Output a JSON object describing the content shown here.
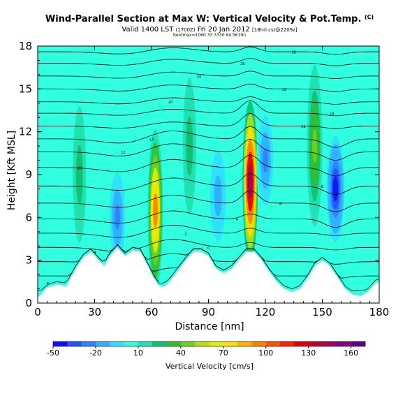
{
  "chart_data": {
    "type": "heatmap",
    "title": "Wind-Parallel Section at Max W: Vertical Velocity & Pot.Temp.",
    "title_suffix": "(C)",
    "subtitle_prefix": "Valid 1400 LST",
    "subtitle_small": "(1700Z)",
    "subtitle_main": "Fri 20 Jan 2012",
    "subtitle_tail": "[18hrl cst@2209z]",
    "subtitle_small2": "bootmax=1060 33 3330 64.5619n",
    "xlabel": "Distance [nm]",
    "ylabel": "Height [Kft MSL]",
    "xlim": [
      0,
      180
    ],
    "ylim": [
      0,
      18
    ],
    "xticks": [
      "0",
      "30",
      "60",
      "90",
      "120",
      "150",
      "180"
    ],
    "yticks": [
      "0",
      "3",
      "6",
      "9",
      "12",
      "15",
      "18"
    ],
    "colorbar": {
      "label": "Vertical Velocity [cm/s]",
      "ticks": [
        "-50",
        "-20",
        "10",
        "40",
        "70",
        "100",
        "130",
        "160"
      ],
      "range": [
        -50,
        170
      ],
      "colors": [
        "#1010ff",
        "#2050ff",
        "#3080ff",
        "#30b0ff",
        "#30e0ff",
        "#30ffe0",
        "#20e0b0",
        "#10c070",
        "#30c030",
        "#70d020",
        "#b0e010",
        "#e0f000",
        "#ffe000",
        "#ffb000",
        "#ff8000",
        "#ff5000",
        "#ff2000",
        "#e00000",
        "#c00030",
        "#a00060",
        "#800080",
        "#600080"
      ]
    },
    "terrain": [
      [
        0,
        0.4
      ],
      [
        5,
        1.1
      ],
      [
        10,
        1.3
      ],
      [
        15,
        1.2
      ],
      [
        20,
        2.4
      ],
      [
        24,
        3.2
      ],
      [
        28,
        3.6
      ],
      [
        32,
        3.0
      ],
      [
        35,
        2.6
      ],
      [
        38,
        3.3
      ],
      [
        42,
        3.9
      ],
      [
        46,
        3.3
      ],
      [
        50,
        3.7
      ],
      [
        54,
        3.6
      ],
      [
        58,
        2.6
      ],
      [
        61,
        1.8
      ],
      [
        64,
        1.2
      ],
      [
        67,
        1.2
      ],
      [
        70,
        1.6
      ],
      [
        74,
        2.3
      ],
      [
        78,
        3.0
      ],
      [
        82,
        3.6
      ],
      [
        86,
        3.6
      ],
      [
        90,
        3.3
      ],
      [
        94,
        2.4
      ],
      [
        98,
        2.1
      ],
      [
        102,
        2.4
      ],
      [
        106,
        3.0
      ],
      [
        110,
        3.6
      ],
      [
        114,
        3.6
      ],
      [
        118,
        3.0
      ],
      [
        122,
        2.2
      ],
      [
        126,
        1.5
      ],
      [
        130,
        1.0
      ],
      [
        134,
        0.8
      ],
      [
        138,
        1.0
      ],
      [
        142,
        1.7
      ],
      [
        146,
        2.6
      ],
      [
        150,
        3.0
      ],
      [
        154,
        2.6
      ],
      [
        158,
        1.8
      ],
      [
        162,
        1.0
      ],
      [
        166,
        0.6
      ],
      [
        170,
        0.5
      ],
      [
        174,
        0.8
      ],
      [
        178,
        1.4
      ],
      [
        180,
        1.5
      ]
    ],
    "features": [
      {
        "kind": "updraft",
        "x": 62,
        "y": 6.5,
        "peak": 90
      },
      {
        "kind": "updraft",
        "x": 112,
        "y": 8.5,
        "peak": 145
      },
      {
        "kind": "updraft",
        "x": 146,
        "y": 11.0,
        "peak": 45
      },
      {
        "kind": "updraft",
        "x": 22,
        "y": 9.0,
        "peak": 25
      },
      {
        "kind": "updraft",
        "x": 80,
        "y": 11.0,
        "peak": 25
      },
      {
        "kind": "downdraft",
        "x": 157,
        "y": 8.0,
        "peak": -45
      },
      {
        "kind": "downdraft",
        "x": 120,
        "y": 10.0,
        "peak": -25
      },
      {
        "kind": "downdraft",
        "x": 42,
        "y": 6.0,
        "peak": -25
      },
      {
        "kind": "downdraft",
        "x": 95,
        "y": 7.5,
        "peak": -15
      }
    ],
    "isentropes": [
      {
        "label": "-6",
        "y": 0.9
      },
      {
        "label": "-4",
        "y": 1.9
      },
      {
        "label": "-2",
        "y": 2.9
      },
      {
        "label": "0",
        "y": 3.9
      },
      {
        "label": "2",
        "y": 4.9
      },
      {
        "label": "4",
        "y": 5.9
      },
      {
        "label": "6",
        "y": 7.0
      },
      {
        "label": "8",
        "y": 8.2
      },
      {
        "label": "10",
        "y": 9.5
      },
      {
        "label": "12",
        "y": 10.6
      },
      {
        "label": "14",
        "y": 11.5
      },
      {
        "label": "16",
        "y": 12.4
      },
      {
        "label": "18",
        "y": 13.3
      },
      {
        "label": "20",
        "y": 14.1
      },
      {
        "label": "22",
        "y": 15.0
      },
      {
        "label": "24",
        "y": 15.9
      },
      {
        "label": "26",
        "y": 16.8
      },
      {
        "label": "28",
        "y": 17.6
      }
    ]
  }
}
